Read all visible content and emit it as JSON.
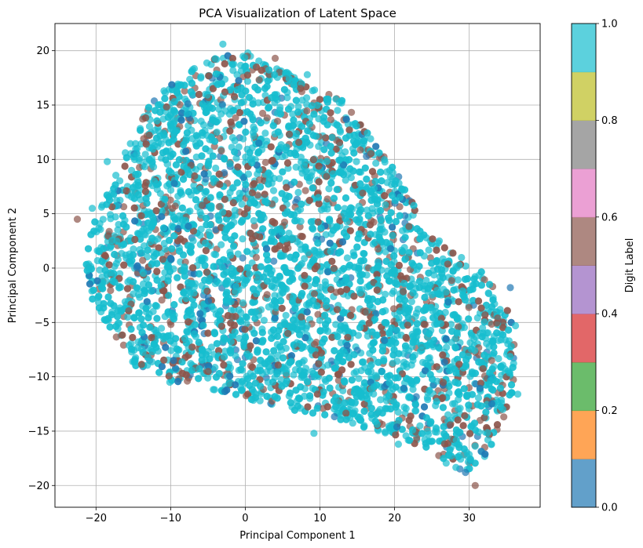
{
  "chart_data": {
    "type": "scatter",
    "title": "PCA Visualization of Latent Space",
    "xlabel": "Principal Component 1",
    "ylabel": "Principal Component 2",
    "xlim": [
      -25.5,
      39.5
    ],
    "ylim": [
      -22,
      22.5
    ],
    "xticks": [
      -20,
      -10,
      0,
      10,
      20,
      30
    ],
    "yticks": [
      -20,
      -15,
      -10,
      -5,
      0,
      5,
      10,
      15,
      20
    ],
    "xtick_labels": [
      "−20",
      "−10",
      "0",
      "10",
      "20",
      "30"
    ],
    "ytick_labels": [
      "−20",
      "−15",
      "−10",
      "−5",
      "0",
      "5",
      "10",
      "15",
      "20"
    ],
    "grid": true,
    "point_alpha": 0.7,
    "series": [
      {
        "label_value": 1.0,
        "color": "#17becf",
        "share": 0.74
      },
      {
        "label_value": 0.6,
        "color": "#8c564b",
        "share": 0.2
      },
      {
        "label_value": 0.0,
        "color": "#1f77b4",
        "share": 0.06
      }
    ],
    "cloud_outline": [
      [
        -21.5,
        -1.5
      ],
      [
        -21,
        3
      ],
      [
        -19,
        6
      ],
      [
        -16,
        11
      ],
      [
        -13,
        15
      ],
      [
        -9,
        17.5
      ],
      [
        -4,
        19.5
      ],
      [
        0,
        20
      ],
      [
        4,
        18.5
      ],
      [
        9,
        17
      ],
      [
        13,
        15.5
      ],
      [
        17,
        12
      ],
      [
        21,
        8
      ],
      [
        25,
        3
      ],
      [
        29,
        1
      ],
      [
        33,
        -1
      ],
      [
        36,
        -5
      ],
      [
        36,
        -11.5
      ],
      [
        33,
        -17
      ],
      [
        29,
        -19
      ],
      [
        24,
        -16.5
      ],
      [
        18,
        -15
      ],
      [
        12,
        -14
      ],
      [
        6,
        -13
      ],
      [
        0,
        -12
      ],
      [
        -6,
        -11
      ],
      [
        -11,
        -10.5
      ],
      [
        -15,
        -9
      ],
      [
        -18,
        -6
      ],
      [
        -20.5,
        -3
      ]
    ],
    "outlier_points": [
      {
        "x": -22.5,
        "y": 4.5,
        "s": 1
      },
      {
        "x": 30.8,
        "y": -20.0,
        "s": 1
      },
      {
        "x": 36.5,
        "y": -11.6,
        "s": 0
      },
      {
        "x": 36.2,
        "y": -5.3,
        "s": 0
      },
      {
        "x": 35.5,
        "y": -1.8,
        "s": 2
      },
      {
        "x": 34.5,
        "y": -13.0,
        "s": 0
      },
      {
        "x": 33.0,
        "y": -8.5,
        "s": 1
      },
      {
        "x": 33.8,
        "y": -4.6,
        "s": 1
      },
      {
        "x": 31.5,
        "y": -6.0,
        "s": 0
      },
      {
        "x": 32.5,
        "y": -15.8,
        "s": 0
      },
      {
        "x": 29.5,
        "y": -18.8,
        "s": 2
      },
      {
        "x": 9.2,
        "y": -15.2,
        "s": 0
      },
      {
        "x": -3.0,
        "y": 20.6,
        "s": 0
      },
      {
        "x": 4.0,
        "y": 19.3,
        "s": 1
      },
      {
        "x": 8.3,
        "y": 17.8,
        "s": 0
      },
      {
        "x": -18.5,
        "y": 9.8,
        "s": 0
      },
      {
        "x": -20.5,
        "y": 5.5,
        "s": 0
      },
      {
        "x": 20.5,
        "y": -16.2,
        "s": 0
      }
    ],
    "colorbar": {
      "label": "Digit Label",
      "range": [
        0.0,
        1.0
      ],
      "ticks": [
        0.0,
        0.2,
        0.4,
        0.6,
        0.8,
        1.0
      ],
      "tick_labels": [
        "0.0",
        "0.2",
        "0.4",
        "0.6",
        "0.8",
        "1.0"
      ],
      "colors": [
        "#1f77b4",
        "#ff7f0e",
        "#2ca02c",
        "#d62728",
        "#9467bd",
        "#8c564b",
        "#e377c2",
        "#7f7f7f",
        "#bcbd22",
        "#17becf"
      ],
      "alpha": 0.7
    }
  }
}
